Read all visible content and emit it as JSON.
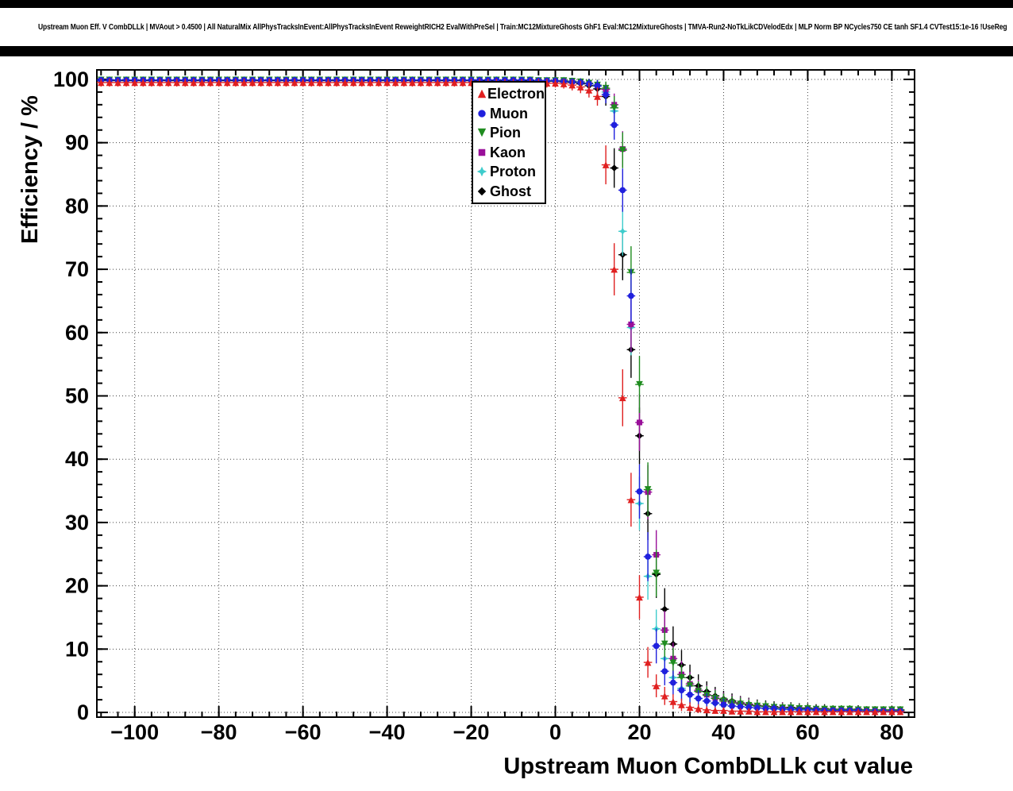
{
  "header": {
    "title": "Upstream Muon Eff. V CombDLLk | MVAout > 0.4500 | All NaturalMix AllPhysTracksInEvent:AllPhysTracksInEvent ReweightRICH2 EvalWithPreSel | Train:MC12MixtureGhosts GhF1 Eval:MC12MixtureGhosts | TMVA-Run2-NoTkLikCDVelodEdx | MLP Norm BP NCycles750 CE tanh SF1.4 CVTest15:1e-16 !UseReg"
  },
  "chart_data": {
    "type": "scatter",
    "title": "",
    "xlabel": "Upstream Muon CombDLLk cut value",
    "ylabel": "Efficiency / %",
    "xlim": [
      -109,
      85.4
    ],
    "ylim": [
      -0.75,
      101.5
    ],
    "grid": "dotted",
    "legend_position": "top-center",
    "x_ticks": {
      "values": [
        -100,
        -80,
        -60,
        -40,
        -20,
        0,
        20,
        40,
        60,
        80
      ],
      "labels": [
        "−100",
        "−80",
        "−60",
        "−40",
        "−20",
        "0",
        "20",
        "40",
        "60",
        "80"
      ]
    },
    "y_ticks": {
      "values": [
        0,
        10,
        20,
        30,
        40,
        50,
        60,
        70,
        80,
        90,
        100
      ],
      "labels": [
        "0",
        "10",
        "20",
        "30",
        "40",
        "50",
        "60",
        "70",
        "80",
        "90",
        "100"
      ]
    },
    "x_minor": {
      "start": -108,
      "end": 84,
      "step": 4
    },
    "y_minor": {
      "start": 0,
      "end": 100,
      "step": 2
    },
    "x": [
      -108,
      -106,
      -104,
      -102,
      -100,
      -98,
      -96,
      -94,
      -92,
      -90,
      -88,
      -86,
      -84,
      -82,
      -80,
      -78,
      -76,
      -74,
      -72,
      -70,
      -68,
      -66,
      -64,
      -62,
      -60,
      -58,
      -56,
      -54,
      -52,
      -50,
      -48,
      -46,
      -44,
      -42,
      -40,
      -38,
      -36,
      -34,
      -32,
      -30,
      -28,
      -26,
      -24,
      -22,
      -20,
      -18,
      -16,
      -14,
      -12,
      -10,
      -8,
      -6,
      -4,
      -2,
      0,
      2,
      4,
      6,
      8,
      10,
      12,
      14,
      16,
      18,
      20,
      22,
      24,
      26,
      28,
      30,
      32,
      34,
      36,
      38,
      40,
      42,
      44,
      46,
      48,
      50,
      52,
      54,
      56,
      58,
      60,
      62,
      64,
      66,
      68,
      70,
      72,
      74,
      76,
      78,
      80,
      82
    ],
    "series": [
      {
        "name": "Electron",
        "color": "#e02020",
        "marker": "triangle-up",
        "y": [
          99.5,
          99.5,
          99.5,
          99.5,
          99.5,
          99.5,
          99.5,
          99.5,
          99.5,
          99.5,
          99.5,
          99.5,
          99.5,
          99.5,
          99.5,
          99.5,
          99.5,
          99.5,
          99.5,
          99.5,
          99.5,
          99.5,
          99.5,
          99.5,
          99.5,
          99.5,
          99.5,
          99.5,
          99.5,
          99.5,
          99.5,
          99.5,
          99.5,
          99.5,
          99.5,
          99.5,
          99.5,
          99.5,
          99.5,
          99.5,
          99.5,
          99.5,
          99.5,
          99.5,
          99.5,
          99.4,
          99.4,
          99.4,
          99.4,
          99.4,
          99.4,
          99.4,
          99.4,
          99.4,
          99.4,
          99.3,
          99.1,
          98.8,
          98.3,
          97.3,
          86.5,
          70.0,
          49.7,
          33.6,
          18.2,
          7.9,
          4.2,
          2.6,
          1.7,
          1.2,
          0.8,
          0.6,
          0.4,
          0.3,
          0.3,
          0.2,
          0.2,
          0.2,
          0.1,
          0.1,
          0.1,
          0.1,
          0.1,
          0.1,
          0.1,
          0.1,
          0.1,
          0.1,
          0.1,
          0.1,
          0.1,
          0.1,
          0.1,
          0.1,
          0.1,
          0.1
        ]
      },
      {
        "name": "Muon",
        "color": "#2020dd",
        "marker": "circle",
        "y": [
          99.9,
          99.9,
          99.9,
          99.9,
          99.9,
          99.9,
          99.9,
          99.9,
          99.9,
          99.9,
          99.9,
          99.9,
          99.9,
          99.9,
          99.9,
          99.9,
          99.9,
          99.9,
          99.9,
          99.9,
          99.9,
          99.9,
          99.9,
          99.9,
          99.9,
          99.9,
          99.9,
          99.9,
          99.9,
          99.9,
          99.9,
          99.9,
          99.9,
          99.9,
          99.9,
          99.9,
          99.9,
          99.9,
          99.9,
          99.9,
          99.9,
          99.9,
          99.9,
          99.9,
          99.9,
          99.9,
          99.9,
          99.9,
          99.9,
          99.9,
          99.9,
          99.9,
          99.8,
          99.8,
          99.8,
          99.7,
          99.6,
          99.5,
          99.3,
          99.0,
          97.6,
          92.8,
          82.5,
          65.8,
          34.9,
          24.6,
          10.5,
          6.5,
          4.7,
          3.5,
          2.8,
          2.2,
          1.8,
          1.5,
          1.2,
          1.0,
          0.9,
          0.8,
          0.7,
          0.6,
          0.6,
          0.5,
          0.5,
          0.4,
          0.4,
          0.4,
          0.3,
          0.3,
          0.3,
          0.3,
          0.3,
          0.2,
          0.2,
          0.2,
          0.2,
          0.2
        ]
      },
      {
        "name": "Pion",
        "color": "#1f8c1f",
        "marker": "triangle-down",
        "y": [
          99.9,
          99.9,
          99.9,
          99.9,
          99.9,
          99.9,
          99.9,
          99.9,
          99.9,
          99.9,
          99.9,
          99.9,
          99.9,
          99.9,
          99.9,
          99.9,
          99.9,
          99.9,
          99.9,
          99.9,
          99.9,
          99.9,
          99.9,
          99.9,
          99.9,
          99.9,
          99.9,
          99.9,
          99.9,
          99.9,
          99.9,
          99.9,
          99.9,
          99.9,
          99.9,
          99.9,
          99.9,
          99.9,
          99.9,
          99.9,
          99.9,
          99.9,
          99.9,
          99.9,
          99.9,
          99.9,
          99.9,
          99.9,
          99.9,
          99.9,
          99.9,
          99.9,
          99.8,
          99.8,
          99.8,
          99.8,
          99.7,
          99.6,
          99.4,
          99.1,
          98.6,
          95.5,
          88.8,
          69.5,
          51.8,
          35.2,
          22.0,
          10.8,
          7.8,
          5.5,
          4.2,
          3.3,
          2.7,
          2.2,
          1.8,
          1.5,
          1.3,
          1.1,
          1.0,
          0.9,
          0.8,
          0.7,
          0.7,
          0.6,
          0.6,
          0.5,
          0.5,
          0.5,
          0.5,
          0.5,
          0.4,
          0.4,
          0.4,
          0.4,
          0.4,
          0.4
        ]
      },
      {
        "name": "Kaon",
        "color": "#990f99",
        "marker": "square",
        "y": [
          99.9,
          99.9,
          99.9,
          99.9,
          99.9,
          99.9,
          99.9,
          99.9,
          99.9,
          99.9,
          99.9,
          99.9,
          99.9,
          99.9,
          99.9,
          99.9,
          99.9,
          99.9,
          99.9,
          99.9,
          99.9,
          99.9,
          99.9,
          99.9,
          99.9,
          99.9,
          99.9,
          99.9,
          99.9,
          99.9,
          99.9,
          99.9,
          99.9,
          99.9,
          99.9,
          99.9,
          99.9,
          99.9,
          99.9,
          99.9,
          99.9,
          99.9,
          99.9,
          99.9,
          99.9,
          99.9,
          99.9,
          99.9,
          99.9,
          99.9,
          99.9,
          99.9,
          99.8,
          99.8,
          99.8,
          99.8,
          99.7,
          99.6,
          99.4,
          99.0,
          98.4,
          96.0,
          89.0,
          61.3,
          45.8,
          34.8,
          24.9,
          13.0,
          8.5,
          6.0,
          4.5,
          3.5,
          2.8,
          2.3,
          1.9,
          1.6,
          1.4,
          1.2,
          1.0,
          0.9,
          0.8,
          0.8,
          0.7,
          0.6,
          0.6,
          0.5,
          0.5,
          0.5,
          0.4,
          0.4,
          0.4,
          0.4,
          0.4,
          0.3,
          0.3,
          0.3
        ]
      },
      {
        "name": "Proton",
        "color": "#3ecccc",
        "marker": "star",
        "y": [
          99.9,
          99.9,
          99.9,
          99.9,
          99.9,
          99.9,
          99.9,
          99.9,
          99.9,
          99.9,
          99.9,
          99.9,
          99.9,
          99.9,
          99.9,
          99.9,
          99.9,
          99.9,
          99.9,
          99.9,
          99.9,
          99.9,
          99.9,
          99.9,
          99.9,
          99.9,
          99.9,
          99.9,
          99.9,
          99.9,
          99.9,
          99.9,
          99.9,
          99.9,
          99.9,
          99.9,
          99.9,
          99.9,
          99.9,
          99.9,
          99.9,
          99.9,
          99.9,
          99.9,
          99.9,
          99.9,
          99.9,
          99.9,
          99.9,
          99.9,
          99.9,
          99.9,
          99.8,
          99.8,
          99.8,
          99.8,
          99.7,
          99.5,
          99.3,
          98.9,
          98.0,
          95.0,
          76.0,
          60.8,
          33.0,
          21.5,
          13.2,
          8.5,
          5.5,
          3.8,
          2.8,
          2.2,
          1.8,
          1.4,
          1.2,
          1.0,
          0.9,
          0.8,
          0.7,
          0.6,
          0.5,
          0.5,
          0.4,
          0.4,
          0.4,
          0.3,
          0.3,
          0.3,
          0.3,
          0.3,
          0.3,
          0.2,
          0.2,
          0.2,
          0.2,
          0.2
        ]
      },
      {
        "name": "Ghost",
        "color": "#000000",
        "marker": "diamond",
        "y": [
          99.8,
          99.8,
          99.8,
          99.8,
          99.8,
          99.8,
          99.8,
          99.8,
          99.8,
          99.8,
          99.8,
          99.8,
          99.8,
          99.8,
          99.8,
          99.8,
          99.8,
          99.8,
          99.8,
          99.8,
          99.8,
          99.8,
          99.8,
          99.8,
          99.8,
          99.8,
          99.8,
          99.8,
          99.8,
          99.8,
          99.8,
          99.8,
          99.8,
          99.8,
          99.8,
          99.8,
          99.8,
          99.8,
          99.8,
          99.8,
          99.8,
          99.8,
          99.8,
          99.8,
          99.8,
          99.8,
          99.8,
          99.8,
          99.8,
          99.8,
          99.8,
          99.8,
          99.7,
          99.7,
          99.7,
          99.6,
          99.5,
          99.3,
          99.0,
          98.5,
          97.3,
          86.0,
          72.3,
          57.3,
          43.7,
          31.4,
          21.8,
          16.3,
          10.8,
          7.5,
          5.5,
          4.2,
          3.3,
          2.6,
          2.1,
          1.8,
          1.5,
          1.3,
          1.1,
          1.0,
          0.9,
          0.8,
          0.8,
          0.7,
          0.7,
          0.6,
          0.6,
          0.5,
          0.5,
          0.5,
          0.5,
          0.4,
          0.4,
          0.4,
          0.4,
          0.4
        ]
      }
    ]
  }
}
